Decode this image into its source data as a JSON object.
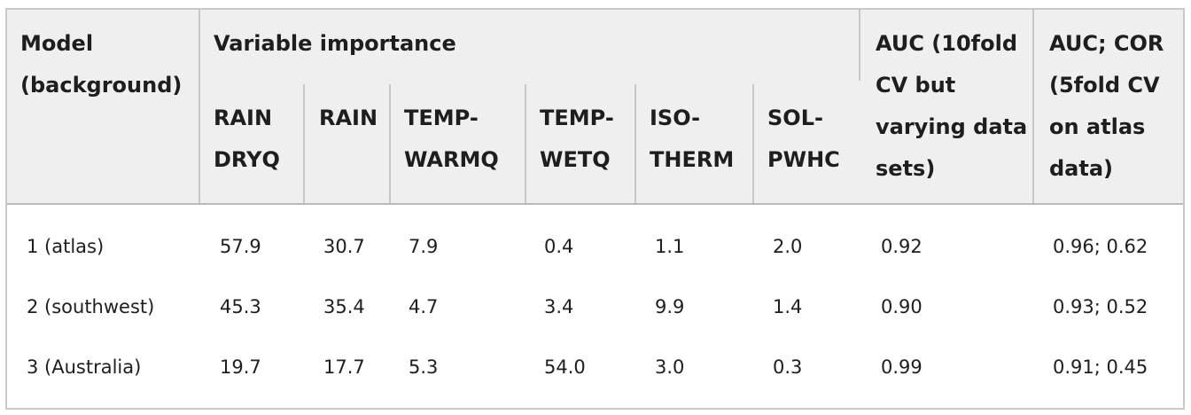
{
  "table": {
    "headers": {
      "model": [
        "Model",
        "(background)"
      ],
      "group": "Variable importance",
      "auc10": [
        "AUC (10fold",
        "CV but",
        "varying data",
        "sets)"
      ],
      "auc5": [
        "AUC; COR",
        "(5fold CV",
        "on atlas",
        "data)"
      ],
      "variables": [
        [
          "RAIN",
          "DRYQ"
        ],
        [
          "RAIN",
          ""
        ],
        [
          "TEMP-",
          "WARMQ"
        ],
        [
          "TEMP-",
          "WETQ"
        ],
        [
          "ISO-",
          "THERM"
        ],
        [
          "SOL-",
          "PWHC"
        ]
      ]
    },
    "rows": [
      {
        "model": "1 (atlas)",
        "values": [
          "57.9",
          "30.7",
          "7.9",
          "0.4",
          "1.1",
          "2.0"
        ],
        "auc10": "0.92",
        "auc5": "0.96; 0.62"
      },
      {
        "model": "2 (southwest)",
        "values": [
          "45.3",
          "35.4",
          "4.7",
          "3.4",
          "9.9",
          "1.4"
        ],
        "auc10": "0.90",
        "auc5": "0.93; 0.52"
      },
      {
        "model": "3 (Australia)",
        "values": [
          "19.7",
          "17.7",
          "5.3",
          "54.0",
          "3.0",
          "0.3"
        ],
        "auc10": "0.99",
        "auc5": "0.91; 0.45"
      }
    ]
  }
}
